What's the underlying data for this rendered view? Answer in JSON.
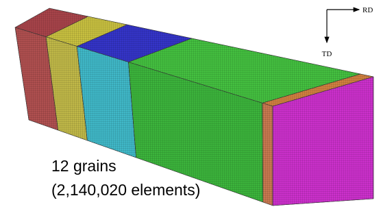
{
  "axes": {
    "x_label": "RD",
    "y_label": "TD"
  },
  "caption": {
    "line1": "12 grains",
    "line2": "(2,140,020 elements)"
  }
}
